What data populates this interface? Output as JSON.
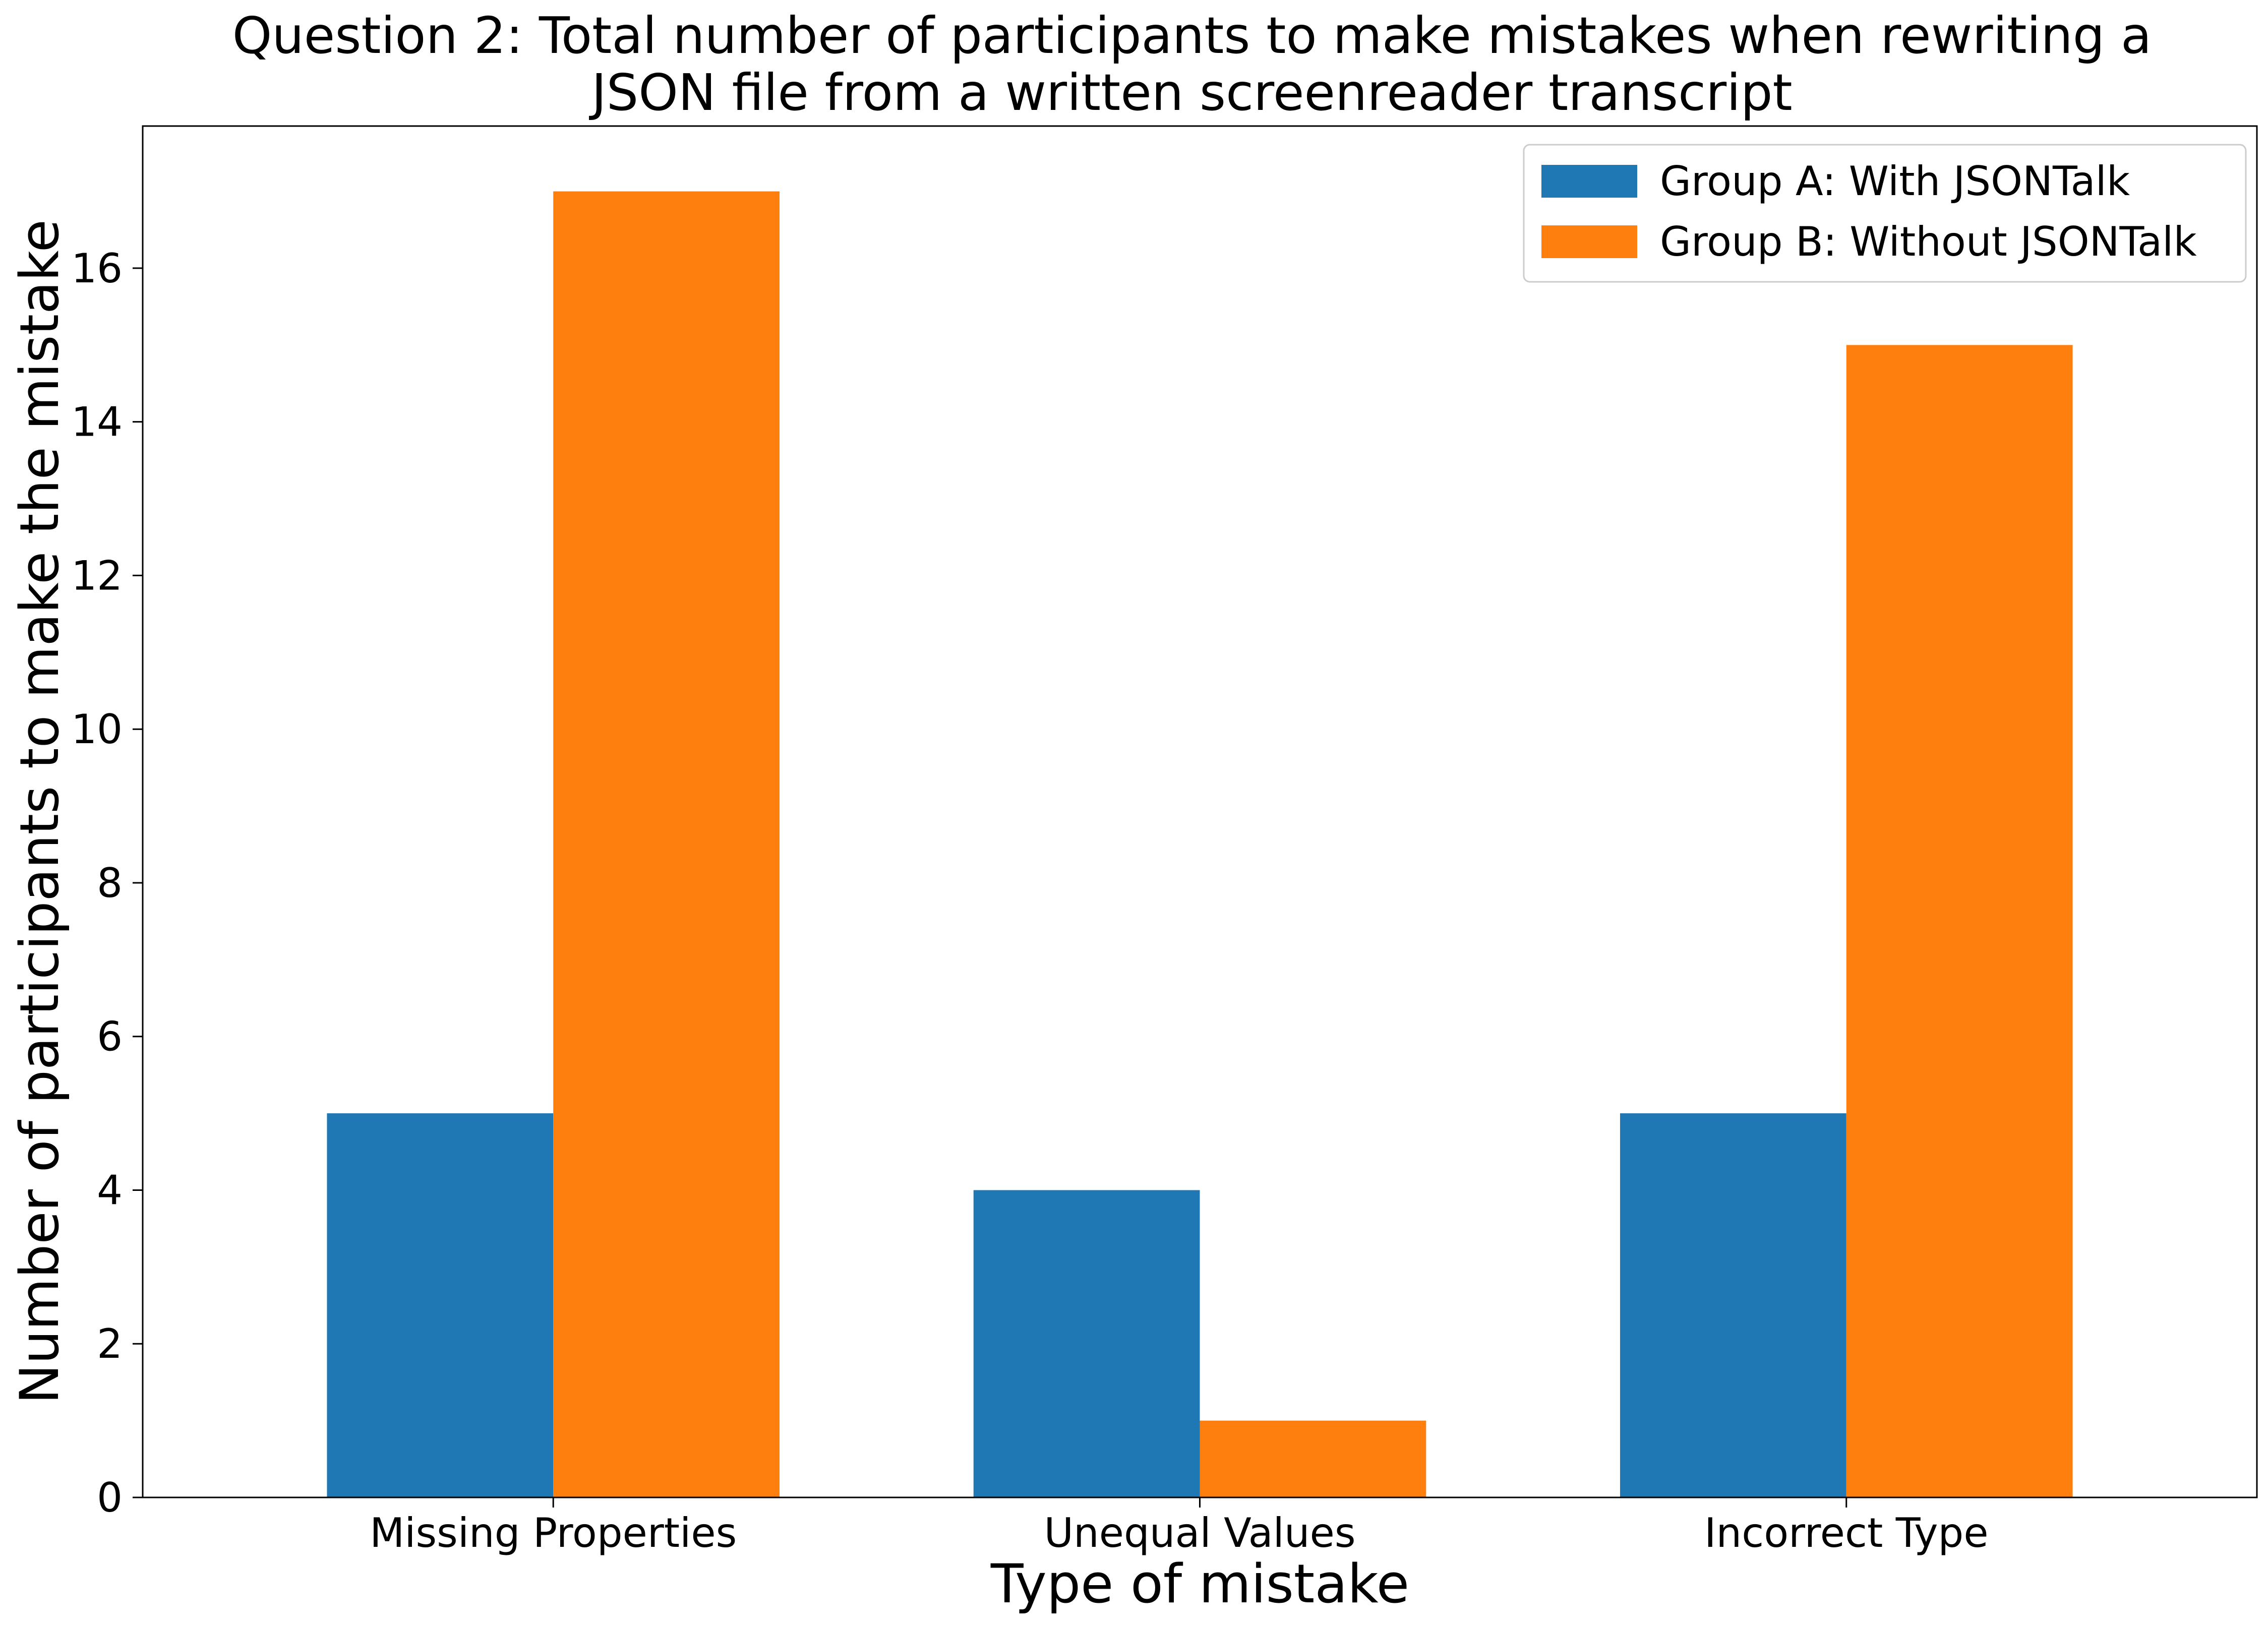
{
  "chart_data": {
    "type": "bar",
    "title_lines": [
      "Question 2: Total number of participants to make mistakes when rewriting a",
      "JSON file from a written screenreader transcript"
    ],
    "xlabel": "Type of mistake",
    "ylabel": "Number of participants to make the mistake",
    "categories": [
      "Missing Properties",
      "Unequal Values",
      "Incorrect Type"
    ],
    "series": [
      {
        "name": "Group A: With JSONTalk",
        "color": "#1f77b4",
        "values": [
          5,
          4,
          5
        ]
      },
      {
        "name": "Group B: Without JSONTalk",
        "color": "#ff7f0e",
        "values": [
          17,
          1,
          15
        ]
      }
    ],
    "ylim": [
      0,
      17.85
    ],
    "yticks": [
      0,
      2,
      4,
      6,
      8,
      10,
      12,
      14,
      16
    ],
    "legend_position": "top-right",
    "grid": false
  }
}
